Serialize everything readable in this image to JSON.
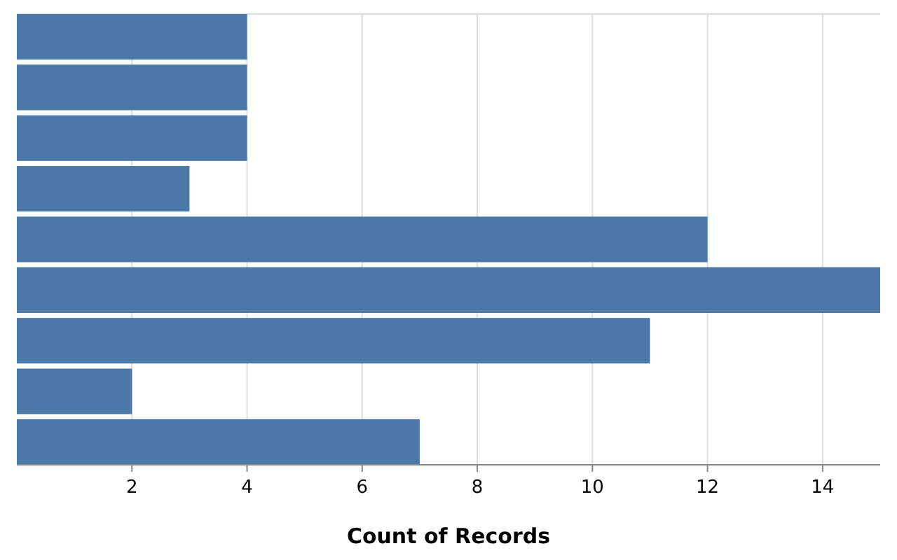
{
  "chart_data": {
    "type": "bar",
    "orientation": "horizontal",
    "xlabel": "Count of Records",
    "categories": [
      null,
      null,
      null,
      null,
      null,
      null,
      null,
      null,
      null
    ],
    "values": [
      4,
      4,
      4,
      3,
      12,
      15,
      11,
      2,
      7
    ],
    "color": "#4c78a8",
    "xlim": [
      0,
      15
    ],
    "xticks": [
      2,
      4,
      6,
      8,
      10,
      12,
      14
    ],
    "grid": "x"
  }
}
